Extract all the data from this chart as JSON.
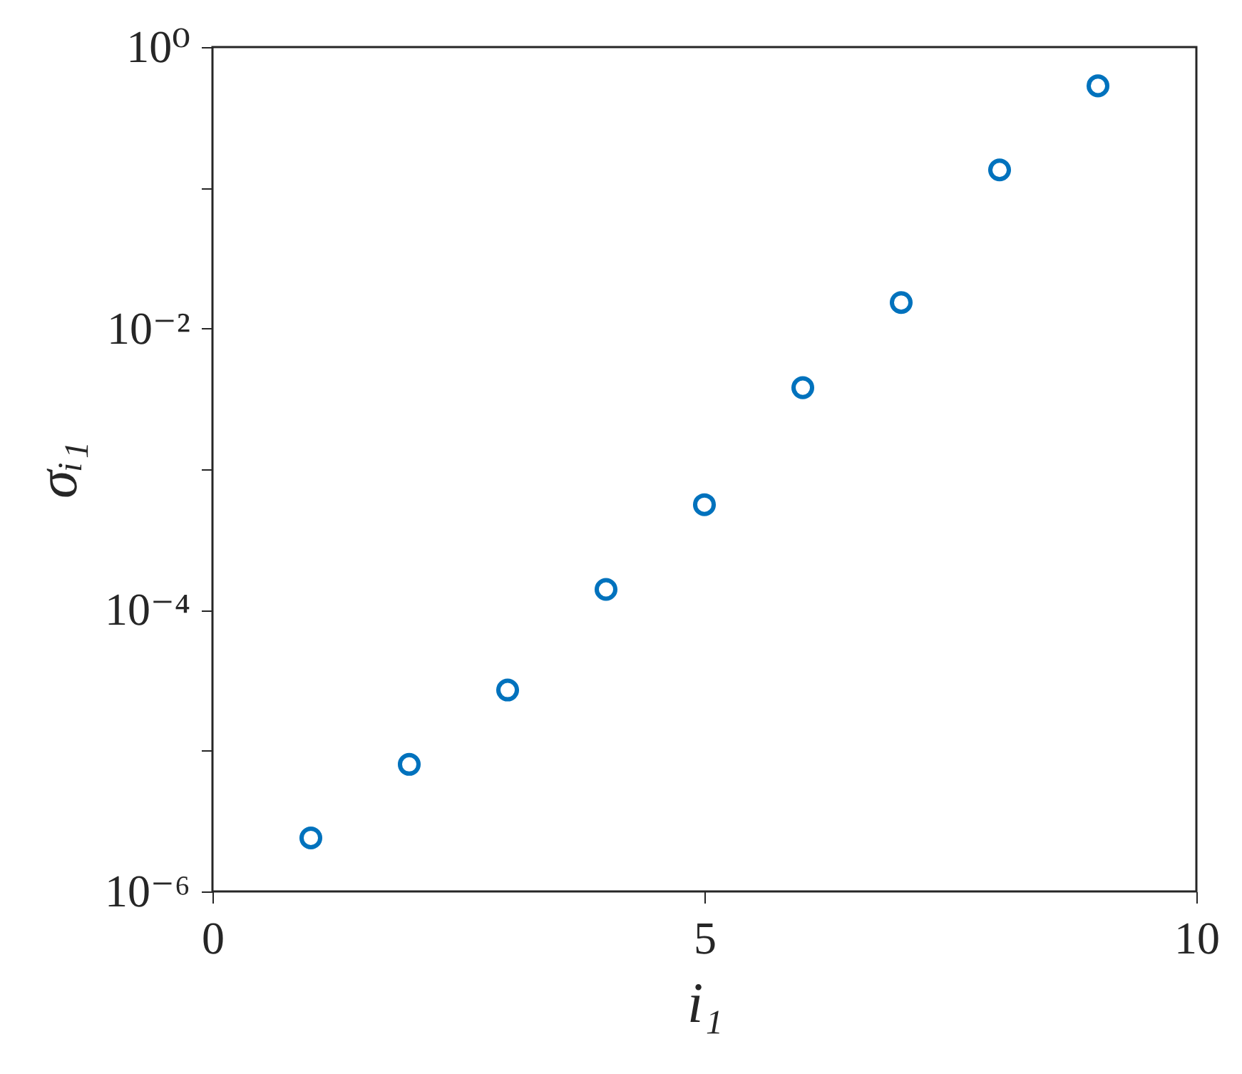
{
  "chart_data": {
    "type": "scatter",
    "xlabel": "i₁",
    "ylabel": "σᵢ₁",
    "x": [
      1,
      2,
      3,
      4,
      5,
      6,
      7,
      8,
      9
    ],
    "series": [
      {
        "color": "#0072bd",
        "values": [
          2.4e-06,
          8e-06,
          2.7e-05,
          0.00014,
          0.00056,
          0.0038,
          0.0153,
          0.134,
          0.53
        ]
      }
    ],
    "log": "y",
    "marker": "circle",
    "grid": false,
    "legend": false,
    "xlim": [
      0,
      10
    ],
    "xticks": [
      0,
      5,
      10
    ],
    "ylim": [
      1e-06,
      1
    ],
    "yticks": [
      {
        "value": 1e-06,
        "label": "10⁻⁶"
      },
      {
        "value": 1e-05,
        "label": null
      },
      {
        "value": 0.0001,
        "label": "10⁻⁴"
      },
      {
        "value": 0.001,
        "label": null
      },
      {
        "value": 0.01,
        "label": "10⁻²"
      },
      {
        "value": 0.1,
        "label": null
      },
      {
        "value": 1,
        "label": "10⁰"
      }
    ]
  }
}
